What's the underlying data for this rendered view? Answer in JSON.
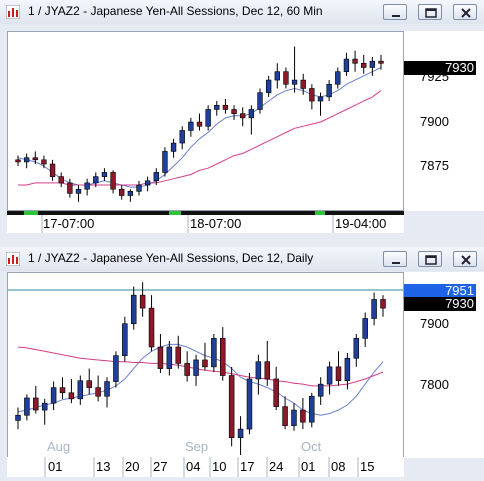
{
  "windows": [
    {
      "title": "1 / JYAZ2 - Japanese Yen-All Sessions, Dec 12, 60 Min",
      "y_ticks": [
        "7925",
        "7900",
        "7875"
      ],
      "last_price": "7930",
      "x_labels": [
        "17-07:00",
        "18-07:00",
        "19-04:00"
      ]
    },
    {
      "title": "1 / JYAZ2 - Japanese Yen-All Sessions, Dec 12, Daily",
      "y_ticks": [
        "7900",
        "7800"
      ],
      "price_labels": [
        "7951",
        "7930"
      ],
      "month_labels": [
        "Aug",
        "Sep",
        "Oct"
      ],
      "x_labels": [
        "01",
        "13",
        "20",
        "27",
        "04",
        "10",
        "17",
        "24",
        "01",
        "08",
        "15"
      ]
    }
  ],
  "colors": {
    "up": "#1f3f9a",
    "down": "#8a1a2a",
    "ma_fast": "#6b7fd1",
    "ma_slow": "#d33c8a",
    "level_line": "#2b8a94",
    "price_box_blue": "#1e62e6"
  },
  "chart_data": [
    {
      "type": "candlestick",
      "title": "1 / JYAZ2 - Japanese Yen-All Sessions, Dec 12, 60 Min",
      "ylim": [
        7862,
        7943
      ],
      "y_ticks": [
        7925,
        7900,
        7875
      ],
      "x_tick_labels": [
        "17-07:00",
        "18-07:00",
        "19-04:00"
      ],
      "last": 7930,
      "ohlc": [
        [
          7884,
          7886,
          7881,
          7883
        ],
        [
          7883,
          7887,
          7880,
          7885
        ],
        [
          7885,
          7888,
          7882,
          7884
        ],
        [
          7884,
          7886,
          7880,
          7882
        ],
        [
          7882,
          7884,
          7874,
          7876
        ],
        [
          7876,
          7878,
          7871,
          7873
        ],
        [
          7873,
          7875,
          7866,
          7868
        ],
        [
          7868,
          7872,
          7864,
          7870
        ],
        [
          7870,
          7875,
          7867,
          7873
        ],
        [
          7873,
          7878,
          7871,
          7876
        ],
        [
          7876,
          7880,
          7874,
          7878
        ],
        [
          7878,
          7879,
          7868,
          7870
        ],
        [
          7870,
          7872,
          7865,
          7867
        ],
        [
          7867,
          7870,
          7864,
          7869
        ],
        [
          7869,
          7874,
          7867,
          7872
        ],
        [
          7872,
          7876,
          7869,
          7874
        ],
        [
          7874,
          7880,
          7872,
          7878
        ],
        [
          7878,
          7890,
          7876,
          7888
        ],
        [
          7888,
          7894,
          7885,
          7892
        ],
        [
          7892,
          7900,
          7889,
          7898
        ],
        [
          7898,
          7904,
          7895,
          7902
        ],
        [
          7902,
          7906,
          7898,
          7900
        ],
        [
          7900,
          7910,
          7898,
          7908
        ],
        [
          7908,
          7912,
          7905,
          7910
        ],
        [
          7910,
          7913,
          7906,
          7908
        ],
        [
          7908,
          7910,
          7903,
          7906
        ],
        [
          7906,
          7909,
          7900,
          7904
        ],
        [
          7904,
          7910,
          7896,
          7908
        ],
        [
          7908,
          7918,
          7906,
          7916
        ],
        [
          7916,
          7924,
          7914,
          7922
        ],
        [
          7922,
          7930,
          7918,
          7926
        ],
        [
          7926,
          7928,
          7918,
          7920
        ],
        [
          7920,
          7938,
          7916,
          7922
        ],
        [
          7922,
          7925,
          7915,
          7918
        ],
        [
          7918,
          7920,
          7908,
          7912
        ],
        [
          7912,
          7916,
          7905,
          7914
        ],
        [
          7914,
          7922,
          7912,
          7920
        ],
        [
          7920,
          7928,
          7918,
          7926
        ],
        [
          7926,
          7935,
          7924,
          7932
        ],
        [
          7932,
          7936,
          7926,
          7930
        ],
        [
          7930,
          7934,
          7925,
          7928
        ],
        [
          7928,
          7933,
          7924,
          7931
        ],
        [
          7931,
          7934,
          7927,
          7930
        ]
      ],
      "series": [
        {
          "values": [
            7885,
            7884,
            7883,
            7881,
            7878,
            7875,
            7873,
            7872,
            7872,
            7873,
            7874,
            7873,
            7872,
            7871,
            7871,
            7872,
            7874,
            7877,
            7881,
            7885,
            7890,
            7894,
            7897,
            7901,
            7904,
            7905,
            7905,
            7906,
            7909,
            7912,
            7915,
            7917,
            7918,
            7917,
            7915,
            7914,
            7915,
            7917,
            7920,
            7922,
            7924,
            7926,
            7928
          ]
        },
        {
          "values": [
            7872,
            7872,
            7873,
            7873,
            7873,
            7873,
            7872,
            7872,
            7872,
            7872,
            7872,
            7872,
            7872,
            7872,
            7872,
            7873,
            7873,
            7874,
            7875,
            7876,
            7877,
            7879,
            7880,
            7882,
            7884,
            7886,
            7887,
            7889,
            7891,
            7893,
            7895,
            7897,
            7899,
            7900,
            7901,
            7902,
            7904,
            7906,
            7908,
            7910,
            7912,
            7914,
            7917
          ]
        }
      ]
    },
    {
      "type": "candlestick",
      "title": "1 / JYAZ2 - Japanese Yen-All Sessions, Dec 12, Daily",
      "ylim": [
        7760,
        7966
      ],
      "y_ticks": [
        7900,
        7800
      ],
      "x_tick_labels": [
        "01",
        "13",
        "20",
        "27",
        "04",
        "10",
        "17",
        "24",
        "01",
        "08",
        "15"
      ],
      "month_labels": [
        "Aug",
        "Sep",
        "Oct"
      ],
      "level": 7951,
      "last": 7930,
      "ohlc": [
        [
          7800,
          7815,
          7790,
          7806
        ],
        [
          7806,
          7830,
          7800,
          7826
        ],
        [
          7826,
          7840,
          7808,
          7812
        ],
        [
          7812,
          7825,
          7795,
          7820
        ],
        [
          7820,
          7845,
          7812,
          7838
        ],
        [
          7838,
          7850,
          7825,
          7832
        ],
        [
          7832,
          7848,
          7820,
          7825
        ],
        [
          7825,
          7852,
          7818,
          7846
        ],
        [
          7846,
          7860,
          7830,
          7838
        ],
        [
          7838,
          7852,
          7822,
          7828
        ],
        [
          7828,
          7850,
          7815,
          7845
        ],
        [
          7845,
          7880,
          7838,
          7875
        ],
        [
          7875,
          7920,
          7868,
          7912
        ],
        [
          7912,
          7955,
          7905,
          7945
        ],
        [
          7945,
          7960,
          7920,
          7930
        ],
        [
          7930,
          7945,
          7880,
          7885
        ],
        [
          7885,
          7900,
          7855,
          7860
        ],
        [
          7860,
          7892,
          7852,
          7885
        ],
        [
          7885,
          7898,
          7860,
          7866
        ],
        [
          7866,
          7880,
          7845,
          7852
        ],
        [
          7852,
          7876,
          7840,
          7870
        ],
        [
          7870,
          7890,
          7858,
          7862
        ],
        [
          7862,
          7900,
          7856,
          7895
        ],
        [
          7895,
          7908,
          7846,
          7852
        ],
        [
          7852,
          7862,
          7770,
          7780
        ],
        [
          7780,
          7805,
          7760,
          7790
        ],
        [
          7790,
          7855,
          7784,
          7848
        ],
        [
          7848,
          7876,
          7830,
          7868
        ],
        [
          7868,
          7892,
          7840,
          7848
        ],
        [
          7848,
          7862,
          7812,
          7816
        ],
        [
          7816,
          7828,
          7790,
          7794
        ],
        [
          7794,
          7820,
          7788,
          7812
        ],
        [
          7812,
          7826,
          7790,
          7798
        ],
        [
          7798,
          7832,
          7792,
          7828
        ],
        [
          7828,
          7850,
          7818,
          7842
        ],
        [
          7842,
          7868,
          7830,
          7862
        ],
        [
          7862,
          7880,
          7840,
          7846
        ],
        [
          7846,
          7878,
          7836,
          7872
        ],
        [
          7872,
          7900,
          7862,
          7895
        ],
        [
          7895,
          7925,
          7885,
          7918
        ],
        [
          7918,
          7948,
          7910,
          7940
        ],
        [
          7940,
          7945,
          7920,
          7930
        ]
      ],
      "series": [
        {
          "values": [
            7810,
            7812,
            7815,
            7818,
            7820,
            7824,
            7826,
            7828,
            7830,
            7832,
            7835,
            7840,
            7848,
            7860,
            7872,
            7880,
            7885,
            7888,
            7888,
            7885,
            7880,
            7875,
            7872,
            7868,
            7860,
            7850,
            7845,
            7842,
            7838,
            7833,
            7826,
            7820,
            7812,
            7808,
            7806,
            7808,
            7812,
            7818,
            7828,
            7842,
            7856,
            7868
          ]
        },
        {
          "values": [
            7885,
            7884,
            7882,
            7880,
            7878,
            7876,
            7874,
            7872,
            7871,
            7870,
            7869,
            7868,
            7868,
            7867,
            7867,
            7866,
            7866,
            7865,
            7864,
            7862,
            7860,
            7858,
            7857,
            7856,
            7854,
            7852,
            7850,
            7849,
            7848,
            7846,
            7845,
            7843,
            7842,
            7840,
            7840,
            7840,
            7841,
            7842,
            7845,
            7848,
            7852,
            7856
          ]
        }
      ]
    }
  ]
}
